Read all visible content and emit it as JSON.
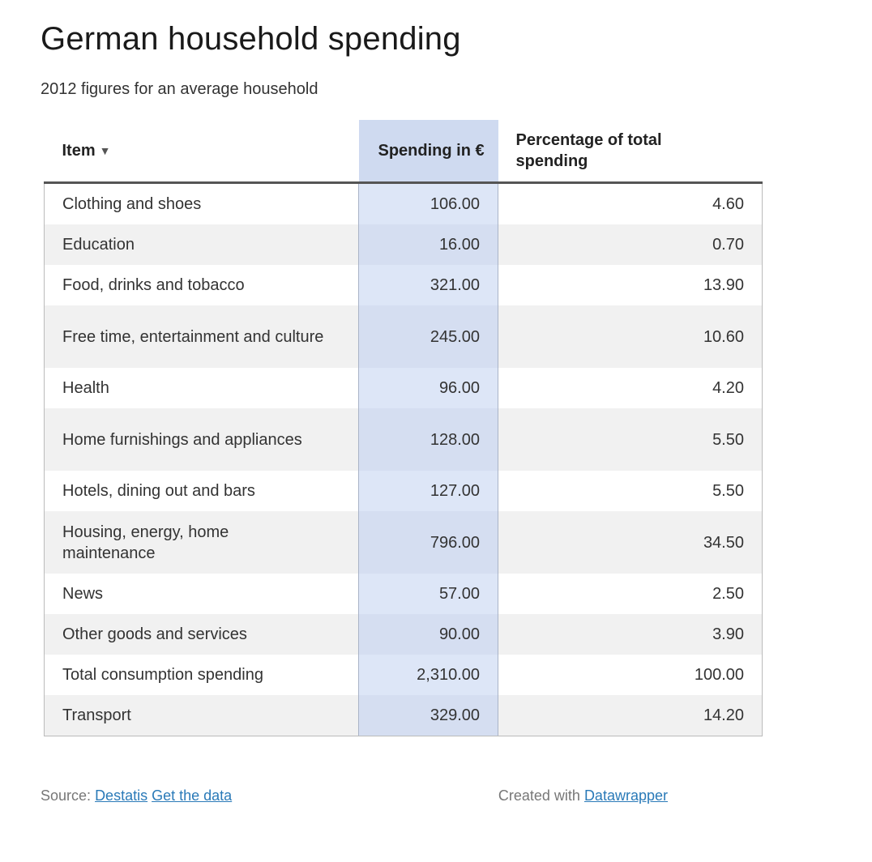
{
  "chart_data": {
    "type": "table",
    "title": "German household spending",
    "subtitle": "2012 figures for an average household",
    "columns": [
      "Item",
      "Spending in €",
      "Percentage of total spending"
    ],
    "sort_indicator": "▼",
    "rows": [
      {
        "item": "Clothing and shoes",
        "spending": "106.00",
        "percentage": "4.60"
      },
      {
        "item": "Education",
        "spending": "16.00",
        "percentage": "0.70"
      },
      {
        "item": "Food, drinks and tobacco",
        "spending": "321.00",
        "percentage": "13.90"
      },
      {
        "item": "Free time, entertainment and culture",
        "spending": "245.00",
        "percentage": "10.60"
      },
      {
        "item": "Health",
        "spending": "96.00",
        "percentage": "4.20"
      },
      {
        "item": "Home furnishings and appliances",
        "spending": "128.00",
        "percentage": "5.50"
      },
      {
        "item": "Hotels, dining out and bars",
        "spending": "127.00",
        "percentage": "5.50"
      },
      {
        "item": "Housing, energy, home maintenance",
        "spending": "796.00",
        "percentage": "34.50"
      },
      {
        "item": "News",
        "spending": "57.00",
        "percentage": "2.50"
      },
      {
        "item": "Other goods and services",
        "spending": "90.00",
        "percentage": "3.90"
      },
      {
        "item": "Total consumption spending",
        "spending": "2,310.00",
        "percentage": "100.00"
      },
      {
        "item": "Transport",
        "spending": "329.00",
        "percentage": "14.20"
      }
    ],
    "highlight_color": "#cfdaf0"
  },
  "footer": {
    "source_label": "Source:",
    "source_link": "Destatis",
    "data_link": "Get the data",
    "created_label": "Created with",
    "created_link": "Datawrapper"
  },
  "colors": {
    "link": "#2a7ab8",
    "header_highlight": "#cfdaf0",
    "column_highlight": "#dde6f7",
    "zebra": "#f1f1f1"
  }
}
